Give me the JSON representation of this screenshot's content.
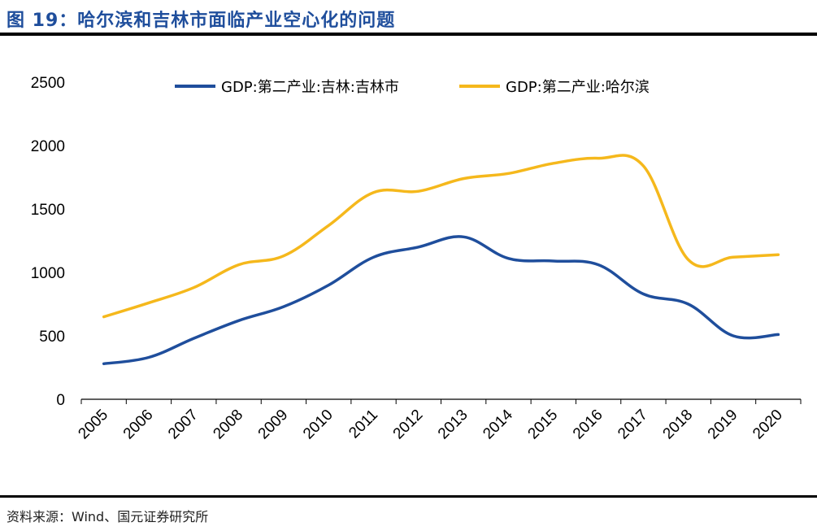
{
  "figure": {
    "title": "图 19：哈尔滨和吉林市面临产业空心化的问题",
    "source": "资料来源：Wind、国元证券研究所"
  },
  "colors": {
    "title": "#1f4e9c",
    "series_jilin": "#1f4e9c",
    "series_harbin": "#f5b81c"
  },
  "chart_data": {
    "type": "line",
    "categories": [
      "2005",
      "2006",
      "2007",
      "2008",
      "2009",
      "2010",
      "2011",
      "2012",
      "2013",
      "2014",
      "2015",
      "2016",
      "2017",
      "2018",
      "2019",
      "2020"
    ],
    "series": [
      {
        "name": "GDP:第二产业:吉林:吉林市",
        "color": "#1f4e9c",
        "values": [
          280,
          330,
          480,
          620,
          730,
          900,
          1120,
          1200,
          1280,
          1110,
          1090,
          1060,
          830,
          750,
          500,
          510
        ]
      },
      {
        "name": "GDP:第二产业:哈尔滨",
        "color": "#f5b81c",
        "values": [
          650,
          760,
          880,
          1060,
          1130,
          1370,
          1630,
          1640,
          1740,
          1780,
          1860,
          1900,
          1840,
          1100,
          1120,
          1140
        ]
      }
    ],
    "y_ticks": [
      0,
      500,
      1000,
      1500,
      2000,
      2500
    ],
    "ylim": [
      0,
      2500
    ],
    "grid": false,
    "legend_position": "top-center"
  }
}
